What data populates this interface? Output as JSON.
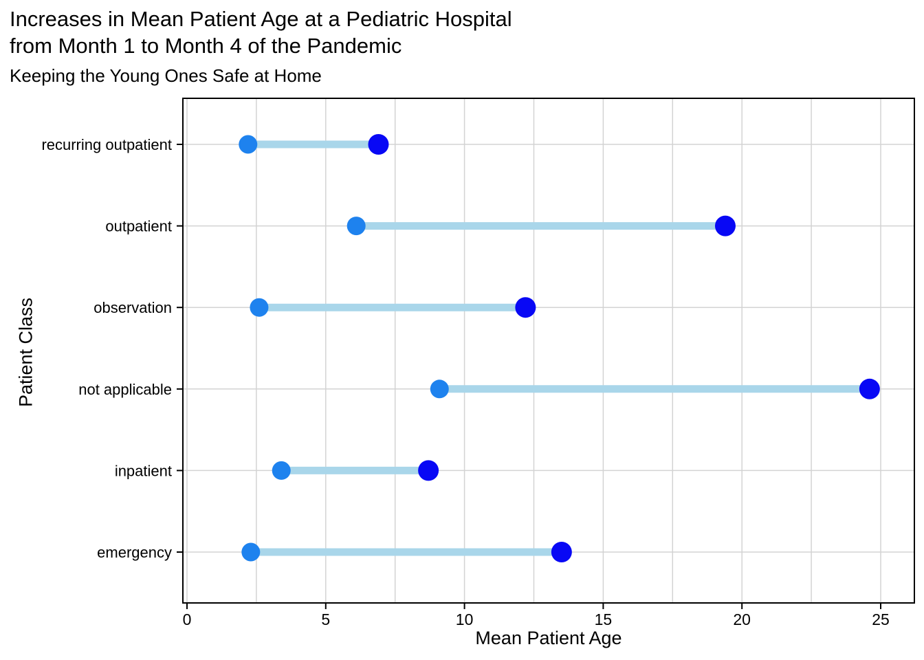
{
  "header": {
    "title": "Increases in Mean Patient Age at a Pediatric Hospital\nfrom Month 1 to Month 4 of the Pandemic",
    "subtitle": "Keeping the Young Ones Safe at Home"
  },
  "chart_data": {
    "type": "dumbbell",
    "orientation": "horizontal",
    "title": "Increases in Mean Patient Age at a Pediatric Hospital from Month 1 to Month 4 of the Pandemic",
    "subtitle": "Keeping the Young Ones Safe at Home",
    "xlabel": "Mean Patient Age",
    "ylabel": "Patient Class",
    "categories_top_to_bottom": [
      "recurring outpatient",
      "outpatient",
      "observation",
      "not applicable",
      "inpatient",
      "emergency"
    ],
    "series": [
      {
        "name": "Month 1",
        "role": "start-dot",
        "color": "#1e82ee",
        "values": [
          2.2,
          6.1,
          2.6,
          9.1,
          3.4,
          2.3
        ]
      },
      {
        "name": "Month 4",
        "role": "end-dot",
        "color": "#0808f5",
        "values": [
          6.9,
          19.4,
          12.2,
          24.6,
          8.7,
          13.5
        ]
      }
    ],
    "connector_color": "#a9d6ea",
    "xlim": [
      0,
      26.2
    ],
    "xticks": [
      0,
      5,
      10,
      15,
      20,
      25
    ],
    "x_minor_step": 2.5,
    "grid": true,
    "gridline_color": "#d3d3d3",
    "panel_border_color": "#000000",
    "background_color": "#ffffff",
    "legend": "none"
  }
}
